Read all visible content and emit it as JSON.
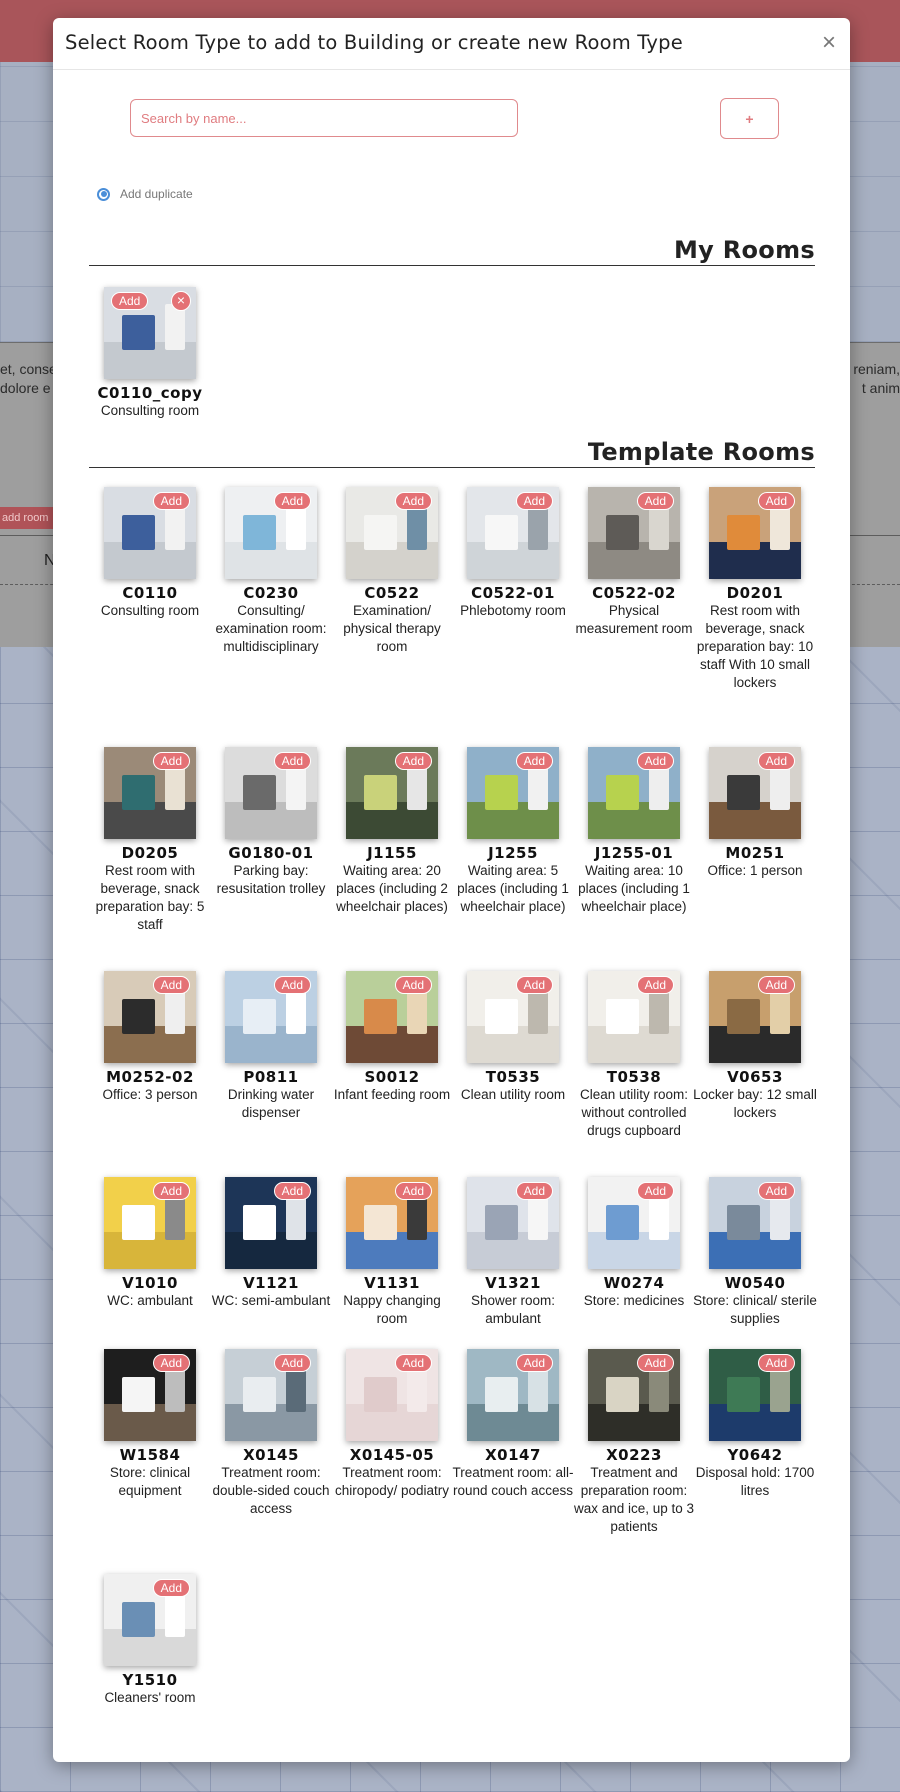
{
  "background": {
    "left_text": [
      "et, conse",
      "dolore e"
    ],
    "right_text": [
      "reniam,",
      "t anim"
    ],
    "add_room_label": "add room",
    "n_label": "N"
  },
  "modal": {
    "title": "Select Room Type to add to Building or create new Room Type",
    "close_icon": "×",
    "search": {
      "placeholder": "Search by name...",
      "value": ""
    },
    "add_new_icon": "+",
    "duplicate_option": {
      "label": "Add duplicate",
      "checked": true
    }
  },
  "my_rooms": {
    "title": "My Rooms",
    "items": [
      {
        "code": "C0110_copy",
        "desc": "Consulting room",
        "add_label": "Add",
        "delete_icon": "×"
      }
    ]
  },
  "template_rooms": {
    "title": "Template Rooms",
    "add_label": "Add",
    "items": [
      {
        "code": "C0110",
        "desc": "Consulting room"
      },
      {
        "code": "C0230",
        "desc": "Consulting/ examination room: multidisciplinary"
      },
      {
        "code": "C0522",
        "desc": "Examination/ physical therapy room"
      },
      {
        "code": "C0522-01",
        "desc": "Phlebotomy room"
      },
      {
        "code": "C0522-02",
        "desc": "Physical measurement room"
      },
      {
        "code": "D0201",
        "desc": "Rest room with beverage, snack preparation bay: 10 staff With 10 small lockers"
      },
      {
        "code": "D0205",
        "desc": "Rest room with beverage, snack preparation bay: 5 staff"
      },
      {
        "code": "G0180-01",
        "desc": "Parking bay: resusitation trolley"
      },
      {
        "code": "J1155",
        "desc": "Waiting area: 20 places (including 2 wheelchair places)"
      },
      {
        "code": "J1255",
        "desc": "Waiting area: 5 places (including 1 wheelchair place)"
      },
      {
        "code": "J1255-01",
        "desc": "Waiting area: 10 places (including 1 wheelchair place)"
      },
      {
        "code": "M0251",
        "desc": "Office: 1 person"
      },
      {
        "code": "M0252-02",
        "desc": "Office: 3 person"
      },
      {
        "code": "P0811",
        "desc": "Drinking water dispenser"
      },
      {
        "code": "S0012",
        "desc": "Infant feeding room"
      },
      {
        "code": "T0535",
        "desc": "Clean utility room"
      },
      {
        "code": "T0538",
        "desc": "Clean utility room: without controlled drugs cupboard"
      },
      {
        "code": "V0653",
        "desc": "Locker bay: 12 small lockers"
      },
      {
        "code": "V1010",
        "desc": "WC: ambulant"
      },
      {
        "code": "V1121",
        "desc": "WC: semi-ambulant"
      },
      {
        "code": "V1131",
        "desc": "Nappy changing room"
      },
      {
        "code": "V1321",
        "desc": "Shower room: ambulant"
      },
      {
        "code": "W0274",
        "desc": "Store: medicines"
      },
      {
        "code": "W0540",
        "desc": "Store: clinical/ sterile supplies"
      },
      {
        "code": "W1584",
        "desc": "Store: clinical equipment"
      },
      {
        "code": "X0145",
        "desc": "Treatment room: double-sided couch access"
      },
      {
        "code": "X0145-05",
        "desc": "Treatment room: chiropody/ podiatry"
      },
      {
        "code": "X0147",
        "desc": "Treatment room: all-round couch access"
      },
      {
        "code": "X0223",
        "desc": "Treatment and preparation room: wax and ice, up to 3 patients"
      },
      {
        "code": "Y0642",
        "desc": "Disposal hold: 1700 litres"
      },
      {
        "code": "Y1510",
        "desc": "Cleaners' room"
      }
    ]
  }
}
